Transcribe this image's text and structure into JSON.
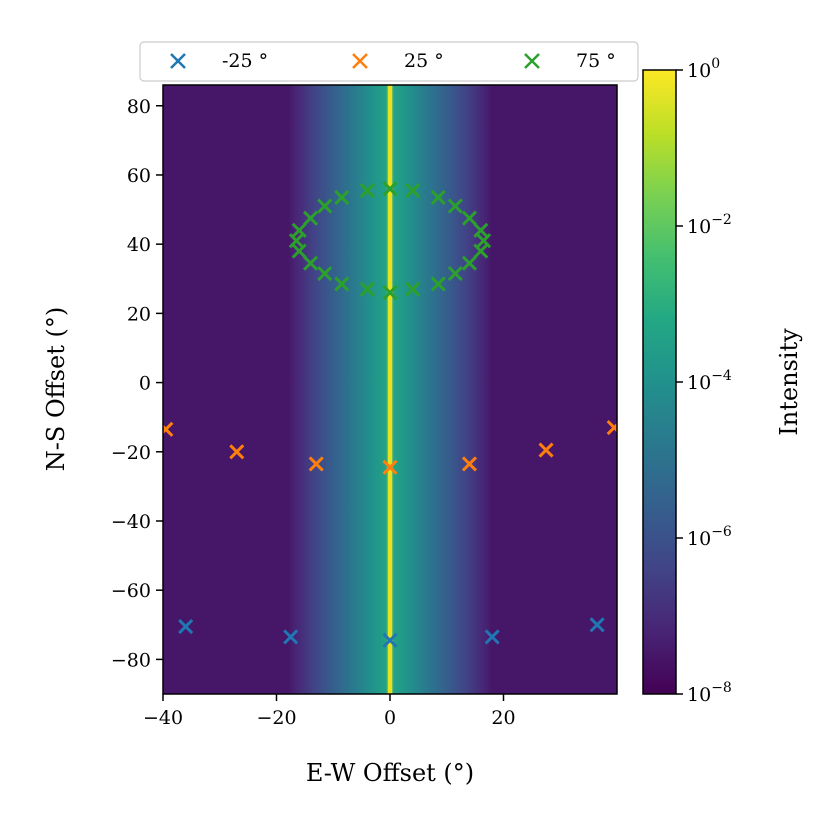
{
  "chart_data": {
    "type": "heatmap",
    "xlabel": "E-W Offset (°)",
    "ylabel": "N-S Offset (°)",
    "xlim": [
      -40,
      40
    ],
    "ylim": [
      -90,
      86
    ],
    "x_ticks": [
      -40,
      -20,
      0,
      20
    ],
    "y_ticks": [
      -80,
      -60,
      -40,
      -20,
      0,
      20,
      40,
      60,
      80
    ],
    "x_tick_labels": [
      "−40",
      "−20",
      "0",
      "20"
    ],
    "y_tick_labels": [
      "−80",
      "−60",
      "−40",
      "−20",
      "0",
      "20",
      "40",
      "60",
      "80"
    ],
    "colorbar": {
      "label": "Intensity",
      "scale": "log",
      "range": [
        1e-08,
        1
      ],
      "colormap": "viridis",
      "tick_values": [
        1e-08,
        1e-06,
        0.0001,
        0.01,
        1
      ],
      "tick_labels": [
        {
          "base": "10",
          "exp": "−8"
        },
        {
          "base": "10",
          "exp": "−6"
        },
        {
          "base": "10",
          "exp": "−4"
        },
        {
          "base": "10",
          "exp": "−2"
        },
        {
          "base": "10",
          "exp": "0"
        }
      ]
    },
    "heatmap_description": {
      "peak_x": 0,
      "peak_intensity": 1,
      "background_intensity": 3e-08
    },
    "legend": {
      "position": "top",
      "columns": 3
    },
    "series": [
      {
        "name": "-25 °",
        "marker": "x",
        "color": "#1f77b4",
        "points": [
          [
            -36,
            -70.5
          ],
          [
            -17.5,
            -73.5
          ],
          [
            0,
            -74.5
          ],
          [
            18,
            -73.5
          ],
          [
            36.5,
            -70
          ]
        ]
      },
      {
        "name": "25 °",
        "marker": "x",
        "color": "#ff7f0e",
        "points": [
          [
            -39.5,
            -13.5
          ],
          [
            -27,
            -20
          ],
          [
            -13,
            -23.5
          ],
          [
            0,
            -24.5
          ],
          [
            14,
            -23.5
          ],
          [
            27.5,
            -19.5
          ],
          [
            39.5,
            -13
          ]
        ]
      },
      {
        "name": "75 °",
        "marker": "x",
        "color": "#2ca02c",
        "points": [
          [
            0,
            56
          ],
          [
            4,
            55.5
          ],
          [
            8.5,
            53.5
          ],
          [
            11.5,
            51
          ],
          [
            14,
            47.5
          ],
          [
            16,
            44
          ],
          [
            16.5,
            41
          ],
          [
            16,
            38
          ],
          [
            14,
            34.5
          ],
          [
            11.5,
            31.5
          ],
          [
            8.5,
            28.5
          ],
          [
            4,
            27
          ],
          [
            0,
            26
          ],
          [
            -4,
            27
          ],
          [
            -8.5,
            28.5
          ],
          [
            -11.5,
            31.5
          ],
          [
            -14,
            34.5
          ],
          [
            -16,
            38
          ],
          [
            -16.5,
            41
          ],
          [
            -16,
            44
          ],
          [
            -14,
            47.5
          ],
          [
            -11.5,
            51
          ],
          [
            -8.5,
            53.5
          ],
          [
            -4,
            55.5
          ]
        ]
      }
    ]
  }
}
